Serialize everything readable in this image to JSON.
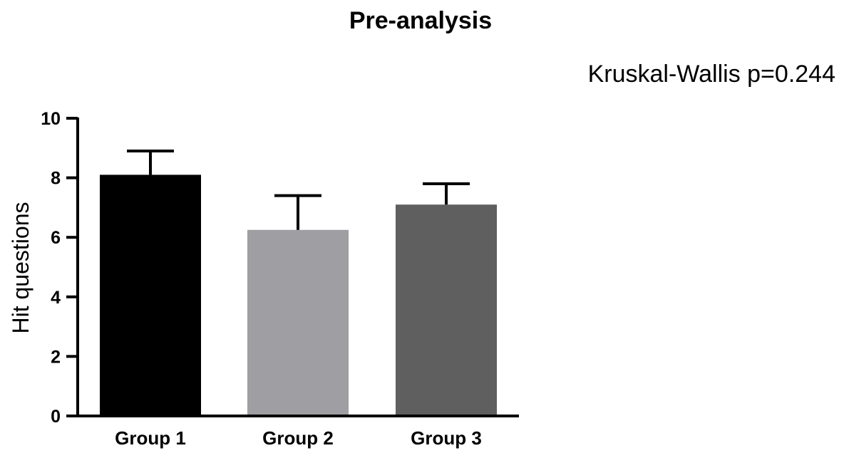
{
  "chart_data": {
    "type": "bar",
    "title": "Pre-analysis",
    "annotation": "Kruskal-Wallis p=0.244",
    "ylabel": "Hit questions",
    "xlabel": "",
    "categories": [
      "Group 1",
      "Group 2",
      "Group 3"
    ],
    "values": [
      8.1,
      6.25,
      7.1
    ],
    "error_upper": [
      8.9,
      7.4,
      7.8
    ],
    "ylim": [
      0,
      10
    ],
    "yticks": [
      0,
      2,
      4,
      6,
      8,
      10
    ],
    "colors": [
      "#000000",
      "#9e9ea3",
      "#5f5f5f"
    ],
    "grid": false,
    "legend": "none"
  }
}
